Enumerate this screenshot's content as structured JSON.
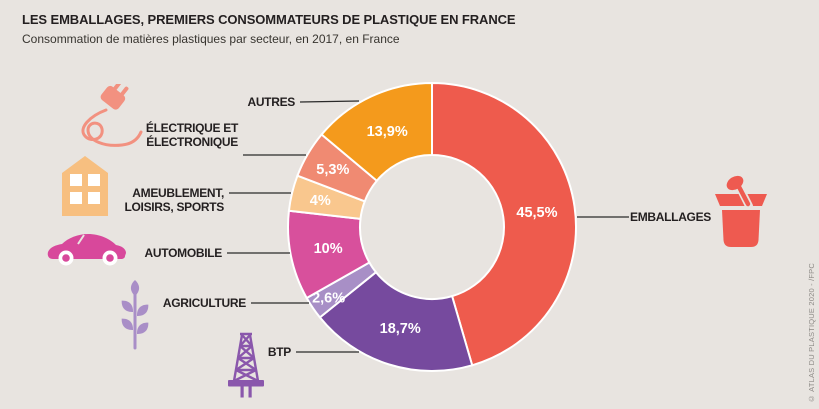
{
  "chart_data": {
    "type": "pie",
    "donut": true,
    "title": "LES EMBALLAGES, PREMIERS CONSOMMATEURS DE PLASTIQUE EN FRANCE",
    "subtitle": "Consommation de matières plastiques par secteur, en 2017, en France",
    "unit": "%",
    "start": "top",
    "direction": "clockwise",
    "legend_position": "callout-labels",
    "categories": [
      "EMBALLAGES",
      "BTP",
      "AGRICULTURE",
      "AUTOMOBILE",
      "AMEUBLEMENT, LOISIRS, SPORTS",
      "ÉLECTRIQUE ET ÉLECTRONIQUE",
      "AUTRES"
    ],
    "values": [
      45.5,
      18.7,
      2.6,
      10,
      4,
      5.3,
      13.9
    ],
    "value_labels": [
      "45,5%",
      "18,7%",
      "2,6%",
      "10%",
      "4%",
      "5,3%",
      "13,9%"
    ],
    "colors": [
      "#EE5B4D",
      "#764A9E",
      "#A88FC6",
      "#D8509C",
      "#F9C78E",
      "#F08A72",
      "#F49A1C"
    ]
  },
  "callouts": [
    {
      "id": "autres",
      "lines": [
        "AUTRES"
      ]
    },
    {
      "id": "electrique-electronique",
      "lines": [
        "ÉLECTRIQUE ET",
        "ÉLECTRONIQUE"
      ]
    },
    {
      "id": "ameublement-loisirs-sports",
      "lines": [
        "AMEUBLEMENT,",
        "LOISIRS, SPORTS"
      ]
    },
    {
      "id": "automobile",
      "lines": [
        "AUTOMOBILE"
      ]
    },
    {
      "id": "agriculture",
      "lines": [
        "AGRICULTURE"
      ]
    },
    {
      "id": "btp",
      "lines": [
        "BTP"
      ]
    },
    {
      "id": "emballages",
      "lines": [
        "EMBALLAGES"
      ]
    }
  ],
  "icons": [
    "plug-icon",
    "house-icon",
    "car-icon",
    "plant-icon",
    "oil-derrick-icon",
    "yogurt-pot-icon"
  ],
  "credit": "© ATLAS DU PLASTIQUE 2020 - /FPC",
  "colors": {
    "background": "#E8E4E0",
    "text": "#231F20",
    "leader_line": "#2A2A2A",
    "credit": "#8E8B87",
    "icon_plug": "#F29180",
    "icon_house": "#F7BF80",
    "icon_car": "#D8489B",
    "icon_plant": "#A98EC7",
    "icon_derrick": "#8A57AC",
    "icon_pot": "#EE5A50"
  }
}
